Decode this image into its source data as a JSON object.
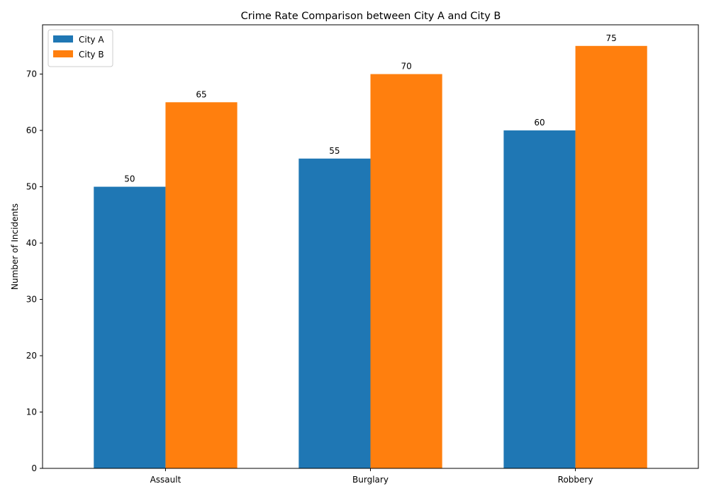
{
  "chart_data": {
    "type": "bar",
    "title": "Crime Rate Comparison between City A and City B",
    "xlabel": "",
    "ylabel": "Number of Incidents",
    "categories": [
      "Assault",
      "Burglary",
      "Robbery"
    ],
    "series": [
      {
        "name": "City A",
        "values": [
          50,
          55,
          60
        ],
        "color": "#1f77b4"
      },
      {
        "name": "City B",
        "values": [
          65,
          70,
          75
        ],
        "color": "#ff7f0e"
      }
    ],
    "ylim": [
      0,
      78.75
    ],
    "yticks": [
      0,
      10,
      20,
      30,
      40,
      50,
      60,
      70
    ],
    "grid": false,
    "legend_position": "top-left"
  }
}
